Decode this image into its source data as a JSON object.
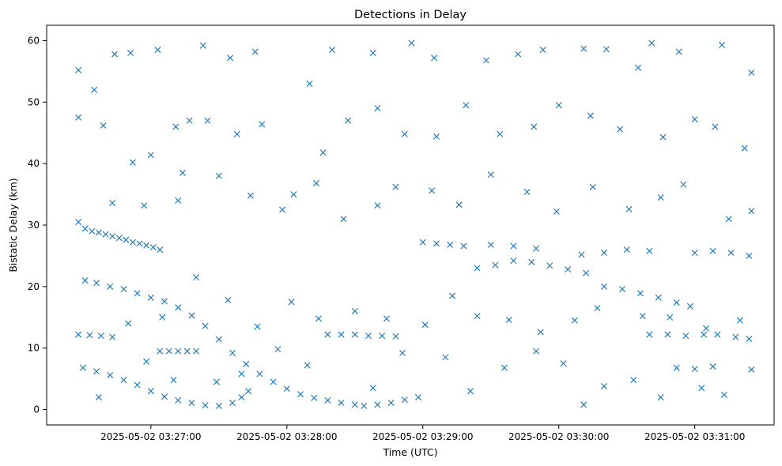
{
  "chart_data": {
    "type": "scatter",
    "title": "Detections in Delay",
    "xlabel": "Time (UTC)",
    "ylabel": "Bistatic Delay (km)",
    "xlim": [
      "2025-05-02 03:26:14",
      "2025-05-02 03:31:35"
    ],
    "ylim": [
      -2.5,
      62.5
    ],
    "x_ticks": [
      "2025-05-02 03:27:00",
      "2025-05-02 03:28:00",
      "2025-05-02 03:29:00",
      "2025-05-02 03:30:00",
      "2025-05-02 03:31:00"
    ],
    "y_ticks": [
      0,
      10,
      20,
      30,
      40,
      50,
      60
    ],
    "grid": false,
    "marker": "x",
    "color": "#1f77b4",
    "series": [
      {
        "points": [
          [
            "2025-05-02 03:26:28",
            30.5
          ],
          [
            "2025-05-02 03:26:31",
            29.4
          ],
          [
            "2025-05-02 03:26:34",
            29.0
          ],
          [
            "2025-05-02 03:26:37",
            28.8
          ],
          [
            "2025-05-02 03:26:40",
            28.5
          ],
          [
            "2025-05-02 03:26:43",
            28.2
          ],
          [
            "2025-05-02 03:26:46",
            27.9
          ],
          [
            "2025-05-02 03:26:49",
            27.6
          ],
          [
            "2025-05-02 03:26:52",
            27.2
          ],
          [
            "2025-05-02 03:26:55",
            27.0
          ],
          [
            "2025-05-02 03:26:58",
            26.7
          ],
          [
            "2025-05-02 03:27:01",
            26.4
          ],
          [
            "2025-05-02 03:27:04",
            26.0
          ],
          [
            "2025-05-02 03:26:31",
            21.0
          ],
          [
            "2025-05-02 03:26:36",
            20.6
          ],
          [
            "2025-05-02 03:26:42",
            20.0
          ],
          [
            "2025-05-02 03:26:48",
            19.6
          ],
          [
            "2025-05-02 03:26:54",
            18.9
          ],
          [
            "2025-05-02 03:27:00",
            18.2
          ],
          [
            "2025-05-02 03:27:06",
            17.6
          ],
          [
            "2025-05-02 03:27:12",
            16.6
          ],
          [
            "2025-05-02 03:27:18",
            15.3
          ],
          [
            "2025-05-02 03:27:24",
            13.6
          ],
          [
            "2025-05-02 03:27:30",
            11.4
          ],
          [
            "2025-05-02 03:27:36",
            9.2
          ],
          [
            "2025-05-02 03:27:42",
            7.4
          ],
          [
            "2025-05-02 03:27:48",
            5.8
          ],
          [
            "2025-05-02 03:27:54",
            4.5
          ],
          [
            "2025-05-02 03:28:00",
            3.4
          ],
          [
            "2025-05-02 03:28:06",
            2.5
          ],
          [
            "2025-05-02 03:28:12",
            1.9
          ],
          [
            "2025-05-02 03:28:18",
            1.5
          ],
          [
            "2025-05-02 03:28:24",
            1.1
          ],
          [
            "2025-05-02 03:28:30",
            0.8
          ],
          [
            "2025-05-02 03:26:28",
            12.2
          ],
          [
            "2025-05-02 03:26:33",
            12.1
          ],
          [
            "2025-05-02 03:26:38",
            12.0
          ],
          [
            "2025-05-02 03:26:43",
            11.8
          ],
          [
            "2025-05-02 03:26:30",
            6.8
          ],
          [
            "2025-05-02 03:26:36",
            6.2
          ],
          [
            "2025-05-02 03:26:42",
            5.6
          ],
          [
            "2025-05-02 03:26:48",
            4.8
          ],
          [
            "2025-05-02 03:26:54",
            4.0
          ],
          [
            "2025-05-02 03:27:00",
            3.0
          ],
          [
            "2025-05-02 03:27:06",
            2.1
          ],
          [
            "2025-05-02 03:27:12",
            1.5
          ],
          [
            "2025-05-02 03:27:18",
            1.1
          ],
          [
            "2025-05-02 03:27:24",
            0.7
          ],
          [
            "2025-05-02 03:27:30",
            0.6
          ],
          [
            "2025-05-02 03:27:36",
            1.1
          ],
          [
            "2025-05-02 03:27:40",
            2.0
          ],
          [
            "2025-05-02 03:27:43",
            3.0
          ],
          [
            "2025-05-02 03:27:04",
            9.5
          ],
          [
            "2025-05-02 03:27:08",
            9.5
          ],
          [
            "2025-05-02 03:27:12",
            9.5
          ],
          [
            "2025-05-02 03:27:16",
            9.5
          ],
          [
            "2025-05-02 03:27:20",
            9.5
          ],
          [
            "2025-05-02 03:28:18",
            12.2
          ],
          [
            "2025-05-02 03:28:24",
            12.2
          ],
          [
            "2025-05-02 03:28:30",
            12.2
          ],
          [
            "2025-05-02 03:28:36",
            12.0
          ],
          [
            "2025-05-02 03:28:42",
            12.0
          ],
          [
            "2025-05-02 03:28:48",
            11.9
          ],
          [
            "2025-05-02 03:28:34",
            0.6
          ],
          [
            "2025-05-02 03:28:40",
            0.8
          ],
          [
            "2025-05-02 03:28:46",
            1.1
          ],
          [
            "2025-05-02 03:28:52",
            1.6
          ],
          [
            "2025-05-02 03:28:58",
            2.0
          ],
          [
            "2025-05-02 03:29:00",
            27.2
          ],
          [
            "2025-05-02 03:29:06",
            27.0
          ],
          [
            "2025-05-02 03:29:12",
            26.8
          ],
          [
            "2025-05-02 03:29:18",
            26.6
          ],
          [
            "2025-05-02 03:29:24",
            23.0
          ],
          [
            "2025-05-02 03:29:32",
            23.5
          ],
          [
            "2025-05-02 03:29:40",
            24.2
          ],
          [
            "2025-05-02 03:29:48",
            24.0
          ],
          [
            "2025-05-02 03:29:56",
            23.4
          ],
          [
            "2025-05-02 03:30:04",
            22.8
          ],
          [
            "2025-05-02 03:30:12",
            22.2
          ],
          [
            "2025-05-02 03:29:30",
            26.8
          ],
          [
            "2025-05-02 03:29:40",
            26.6
          ],
          [
            "2025-05-02 03:29:50",
            26.2
          ],
          [
            "2025-05-02 03:30:10",
            25.2
          ],
          [
            "2025-05-02 03:30:20",
            25.5
          ],
          [
            "2025-05-02 03:30:30",
            26.0
          ],
          [
            "2025-05-02 03:30:40",
            25.8
          ],
          [
            "2025-05-02 03:30:20",
            20.0
          ],
          [
            "2025-05-02 03:30:28",
            19.6
          ],
          [
            "2025-05-02 03:30:36",
            18.9
          ],
          [
            "2025-05-02 03:30:44",
            18.2
          ],
          [
            "2025-05-02 03:30:52",
            17.4
          ],
          [
            "2025-05-02 03:30:58",
            16.8
          ],
          [
            "2025-05-02 03:30:40",
            12.2
          ],
          [
            "2025-05-02 03:30:48",
            12.2
          ],
          [
            "2025-05-02 03:30:56",
            12.0
          ],
          [
            "2025-05-02 03:31:04",
            12.2
          ],
          [
            "2025-05-02 03:31:00",
            25.5
          ],
          [
            "2025-05-02 03:31:08",
            25.8
          ],
          [
            "2025-05-02 03:31:16",
            25.5
          ],
          [
            "2025-05-02 03:31:24",
            25.0
          ],
          [
            "2025-05-02 03:31:10",
            12.2
          ],
          [
            "2025-05-02 03:31:18",
            11.8
          ],
          [
            "2025-05-02 03:31:24",
            11.5
          ],
          [
            "2025-05-02 03:30:52",
            6.8
          ],
          [
            "2025-05-02 03:31:00",
            6.6
          ],
          [
            "2025-05-02 03:31:08",
            7.0
          ],
          [
            "2025-05-02 03:26:28",
            55.2
          ],
          [
            "2025-05-02 03:26:35",
            52.0
          ],
          [
            "2025-05-02 03:26:44",
            57.8
          ],
          [
            "2025-05-02 03:26:51",
            58.0
          ],
          [
            "2025-05-02 03:27:03",
            58.5
          ],
          [
            "2025-05-02 03:27:11",
            46.0
          ],
          [
            "2025-05-02 03:27:17",
            47.0
          ],
          [
            "2025-05-02 03:27:23",
            59.2
          ],
          [
            "2025-05-02 03:27:35",
            57.2
          ],
          [
            "2025-05-02 03:27:46",
            58.2
          ],
          [
            "2025-05-02 03:28:10",
            53.0
          ],
          [
            "2025-05-02 03:28:20",
            58.5
          ],
          [
            "2025-05-02 03:28:38",
            58.0
          ],
          [
            "2025-05-02 03:28:55",
            59.6
          ],
          [
            "2025-05-02 03:29:05",
            57.2
          ],
          [
            "2025-05-02 03:29:28",
            56.8
          ],
          [
            "2025-05-02 03:29:42",
            57.8
          ],
          [
            "2025-05-02 03:29:53",
            58.5
          ],
          [
            "2025-05-02 03:30:11",
            58.7
          ],
          [
            "2025-05-02 03:30:21",
            58.6
          ],
          [
            "2025-05-02 03:30:35",
            55.6
          ],
          [
            "2025-05-02 03:30:41",
            59.6
          ],
          [
            "2025-05-02 03:30:53",
            58.2
          ],
          [
            "2025-05-02 03:31:12",
            59.3
          ],
          [
            "2025-05-02 03:31:25",
            54.8
          ],
          [
            "2025-05-02 03:26:28",
            47.5
          ],
          [
            "2025-05-02 03:26:39",
            46.2
          ],
          [
            "2025-05-02 03:26:52",
            40.2
          ],
          [
            "2025-05-02 03:27:00",
            41.4
          ],
          [
            "2025-05-02 03:27:14",
            38.5
          ],
          [
            "2025-05-02 03:27:25",
            47.0
          ],
          [
            "2025-05-02 03:27:38",
            44.8
          ],
          [
            "2025-05-02 03:27:49",
            46.4
          ],
          [
            "2025-05-02 03:28:03",
            35.0
          ],
          [
            "2025-05-02 03:28:16",
            41.8
          ],
          [
            "2025-05-02 03:28:27",
            47.0
          ],
          [
            "2025-05-02 03:28:40",
            49.0
          ],
          [
            "2025-05-02 03:28:52",
            44.8
          ],
          [
            "2025-05-02 03:29:06",
            44.4
          ],
          [
            "2025-05-02 03:29:19",
            49.5
          ],
          [
            "2025-05-02 03:29:34",
            44.8
          ],
          [
            "2025-05-02 03:29:49",
            46.0
          ],
          [
            "2025-05-02 03:30:00",
            49.5
          ],
          [
            "2025-05-02 03:30:14",
            47.8
          ],
          [
            "2025-05-02 03:30:27",
            45.6
          ],
          [
            "2025-05-02 03:30:46",
            44.3
          ],
          [
            "2025-05-02 03:31:00",
            47.2
          ],
          [
            "2025-05-02 03:31:09",
            46.0
          ],
          [
            "2025-05-02 03:31:22",
            42.5
          ],
          [
            "2025-05-02 03:26:43",
            33.6
          ],
          [
            "2025-05-02 03:26:57",
            33.2
          ],
          [
            "2025-05-02 03:27:12",
            34.0
          ],
          [
            "2025-05-02 03:27:30",
            38.0
          ],
          [
            "2025-05-02 03:27:44",
            34.8
          ],
          [
            "2025-05-02 03:27:58",
            32.5
          ],
          [
            "2025-05-02 03:28:13",
            36.8
          ],
          [
            "2025-05-02 03:28:25",
            31.0
          ],
          [
            "2025-05-02 03:28:40",
            33.2
          ],
          [
            "2025-05-02 03:28:48",
            36.2
          ],
          [
            "2025-05-02 03:29:04",
            35.6
          ],
          [
            "2025-05-02 03:29:16",
            33.3
          ],
          [
            "2025-05-02 03:29:30",
            38.2
          ],
          [
            "2025-05-02 03:29:46",
            35.4
          ],
          [
            "2025-05-02 03:29:59",
            32.2
          ],
          [
            "2025-05-02 03:30:15",
            36.2
          ],
          [
            "2025-05-02 03:30:31",
            32.6
          ],
          [
            "2025-05-02 03:30:45",
            34.5
          ],
          [
            "2025-05-02 03:30:55",
            36.6
          ],
          [
            "2025-05-02 03:31:15",
            31.0
          ],
          [
            "2025-05-02 03:31:25",
            32.3
          ],
          [
            "2025-05-02 03:26:50",
            14.0
          ],
          [
            "2025-05-02 03:27:05",
            15.0
          ],
          [
            "2025-05-02 03:27:20",
            21.5
          ],
          [
            "2025-05-02 03:27:34",
            17.8
          ],
          [
            "2025-05-02 03:27:47",
            13.5
          ],
          [
            "2025-05-02 03:28:02",
            17.5
          ],
          [
            "2025-05-02 03:28:14",
            14.8
          ],
          [
            "2025-05-02 03:28:30",
            16.0
          ],
          [
            "2025-05-02 03:28:44",
            14.8
          ],
          [
            "2025-05-02 03:29:01",
            13.8
          ],
          [
            "2025-05-02 03:29:13",
            18.5
          ],
          [
            "2025-05-02 03:29:24",
            15.2
          ],
          [
            "2025-05-02 03:29:38",
            14.6
          ],
          [
            "2025-05-02 03:29:52",
            12.6
          ],
          [
            "2025-05-02 03:30:07",
            14.5
          ],
          [
            "2025-05-02 03:30:17",
            16.5
          ],
          [
            "2025-05-02 03:30:37",
            15.2
          ],
          [
            "2025-05-02 03:30:49",
            15.0
          ],
          [
            "2025-05-02 03:31:05",
            13.2
          ],
          [
            "2025-05-02 03:31:20",
            14.5
          ],
          [
            "2025-05-02 03:26:37",
            2.0
          ],
          [
            "2025-05-02 03:26:58",
            7.8
          ],
          [
            "2025-05-02 03:27:10",
            4.8
          ],
          [
            "2025-05-02 03:27:29",
            4.5
          ],
          [
            "2025-05-02 03:27:40",
            5.8
          ],
          [
            "2025-05-02 03:27:56",
            9.8
          ],
          [
            "2025-05-02 03:28:09",
            7.2
          ],
          [
            "2025-05-02 03:28:38",
            3.5
          ],
          [
            "2025-05-02 03:28:51",
            9.2
          ],
          [
            "2025-05-02 03:29:10",
            8.5
          ],
          [
            "2025-05-02 03:29:21",
            3.0
          ],
          [
            "2025-05-02 03:29:36",
            6.8
          ],
          [
            "2025-05-02 03:29:50",
            9.5
          ],
          [
            "2025-05-02 03:30:02",
            7.5
          ],
          [
            "2025-05-02 03:30:11",
            0.8
          ],
          [
            "2025-05-02 03:30:20",
            3.8
          ],
          [
            "2025-05-02 03:30:33",
            4.8
          ],
          [
            "2025-05-02 03:30:45",
            2.0
          ],
          [
            "2025-05-02 03:31:03",
            3.5
          ],
          [
            "2025-05-02 03:31:13",
            2.4
          ],
          [
            "2025-05-02 03:31:25",
            6.5
          ]
        ]
      }
    ]
  }
}
